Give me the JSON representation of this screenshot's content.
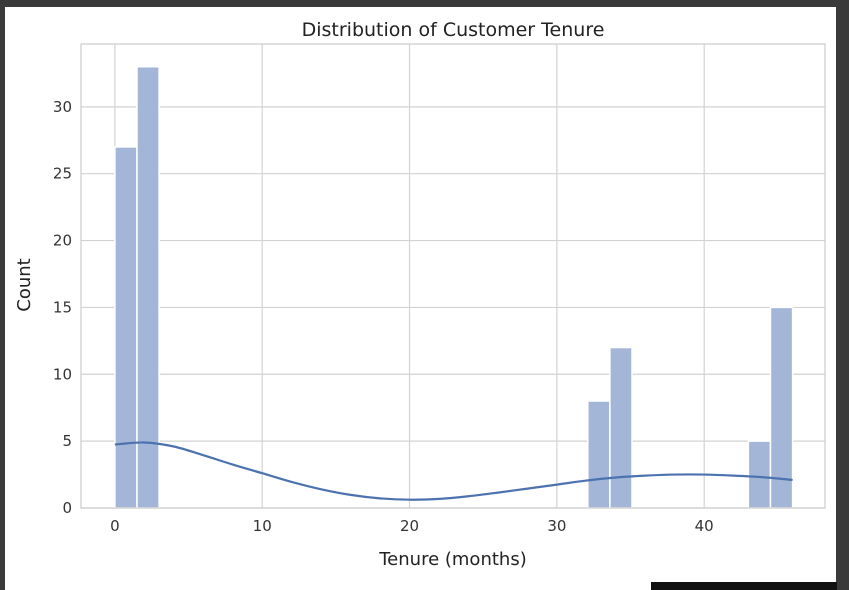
{
  "chart_data": {
    "type": "bar",
    "title": "Distribution of Customer Tenure",
    "xlabel": "Tenure (months)",
    "ylabel": "Count",
    "xlim": [
      -2.3,
      48.2
    ],
    "ylim": [
      0,
      34.7
    ],
    "xticks": [
      0,
      10,
      20,
      30,
      40
    ],
    "yticks": [
      0,
      5,
      10,
      15,
      20,
      25,
      30
    ],
    "grid": true,
    "bars": [
      {
        "x0": 0,
        "x1": 1.5,
        "value": 27
      },
      {
        "x0": 1.5,
        "x1": 3,
        "value": 33
      },
      {
        "x0": 32.1,
        "x1": 33.6,
        "value": 8
      },
      {
        "x0": 33.6,
        "x1": 35.1,
        "value": 12
      },
      {
        "x0": 43.0,
        "x1": 44.5,
        "value": 5
      },
      {
        "x0": 44.5,
        "x1": 46.0,
        "value": 15
      }
    ],
    "kde": {
      "x": [
        0,
        2,
        4,
        6,
        8,
        10,
        12,
        14,
        16,
        18,
        20,
        22,
        24,
        26,
        28,
        30,
        32,
        34,
        36,
        38,
        40,
        42,
        44,
        46
      ],
      "y": [
        4.75,
        4.9,
        4.6,
        3.95,
        3.25,
        2.6,
        1.95,
        1.4,
        0.98,
        0.72,
        0.62,
        0.68,
        0.88,
        1.15,
        1.45,
        1.75,
        2.05,
        2.28,
        2.42,
        2.5,
        2.5,
        2.42,
        2.3,
        2.1
      ]
    },
    "colors": {
      "bar": "#a3b6d7",
      "bar_edge": "#ffffff",
      "kde": "#4c72b0",
      "grid": "#d3d3d3",
      "frame": "#cccccc"
    }
  }
}
